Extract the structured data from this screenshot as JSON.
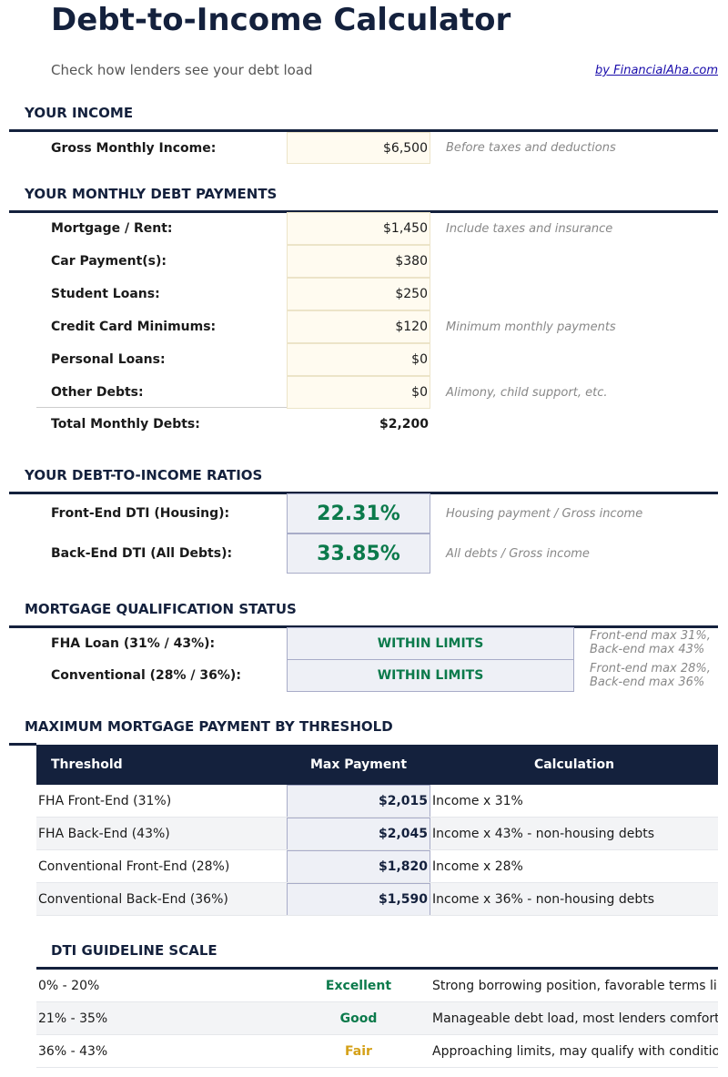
{
  "header": {
    "title": "Debt-to-Income Calculator",
    "subtitle": "Check how lenders see your debt load",
    "byline": "by FinancialAha.com"
  },
  "income": {
    "section": "YOUR INCOME",
    "label": "Gross Monthly Income:",
    "value": "$6,500",
    "note": "Before taxes and deductions"
  },
  "debts": {
    "section": "YOUR MONTHLY DEBT PAYMENTS",
    "items": [
      {
        "label": "Mortgage / Rent:",
        "value": "$1,450",
        "note": "Include taxes and insurance"
      },
      {
        "label": "Car Payment(s):",
        "value": "$380",
        "note": ""
      },
      {
        "label": "Student Loans:",
        "value": "$250",
        "note": ""
      },
      {
        "label": "Credit Card Minimums:",
        "value": "$120",
        "note": "Minimum monthly payments"
      },
      {
        "label": "Personal Loans:",
        "value": "$0",
        "note": ""
      },
      {
        "label": "Other Debts:",
        "value": "$0",
        "note": "Alimony, child support, etc."
      }
    ],
    "total_label": "Total Monthly Debts:",
    "total_value": "$2,200"
  },
  "ratios": {
    "section": "YOUR DEBT-TO-INCOME RATIOS",
    "items": [
      {
        "label": "Front-End DTI (Housing):",
        "value": "22.31%",
        "note": "Housing payment / Gross income"
      },
      {
        "label": "Back-End DTI (All Debts):",
        "value": "33.85%",
        "note": "All debts / Gross income"
      }
    ]
  },
  "qualification": {
    "section": "MORTGAGE QUALIFICATION STATUS",
    "items": [
      {
        "label": "FHA Loan (31% / 43%):",
        "status": "WITHIN LIMITS",
        "note1": "Front-end max 31%,",
        "note2": "Back-end max 43%"
      },
      {
        "label": "Conventional (28% / 36%):",
        "status": "WITHIN LIMITS",
        "note1": "Front-end max 28%,",
        "note2": "Back-end max 36%"
      }
    ]
  },
  "max_payment": {
    "section": "MAXIMUM MORTGAGE PAYMENT BY THRESHOLD",
    "headers": [
      "Threshold",
      "Max Payment",
      "Calculation"
    ],
    "rows": [
      {
        "threshold": "FHA Front-End (31%)",
        "payment": "$2,015",
        "calc": "Income x 31%"
      },
      {
        "threshold": "FHA Back-End (43%)",
        "payment": "$2,045",
        "calc": "Income x 43% - non-housing debts"
      },
      {
        "threshold": "Conventional Front-End (28%)",
        "payment": "$1,820",
        "calc": "Income x 28%"
      },
      {
        "threshold": "Conventional Back-End (36%)",
        "payment": "$1,590",
        "calc": "Income x 36% - non-housing debts"
      }
    ]
  },
  "scale": {
    "section": "DTI GUIDELINE SCALE",
    "rows": [
      {
        "range": "0% - 20%",
        "rating": "Excellent",
        "desc": "Strong borrowing position, favorable terms likely",
        "color": "#0b7a4b"
      },
      {
        "range": "21% - 35%",
        "rating": "Good",
        "desc": "Manageable debt load, most lenders comfortable",
        "color": "#0b7a4b"
      },
      {
        "range": "36% - 43%",
        "rating": "Fair",
        "desc": "Approaching limits, may qualify with conditions",
        "color": "#d4a017"
      }
    ]
  }
}
